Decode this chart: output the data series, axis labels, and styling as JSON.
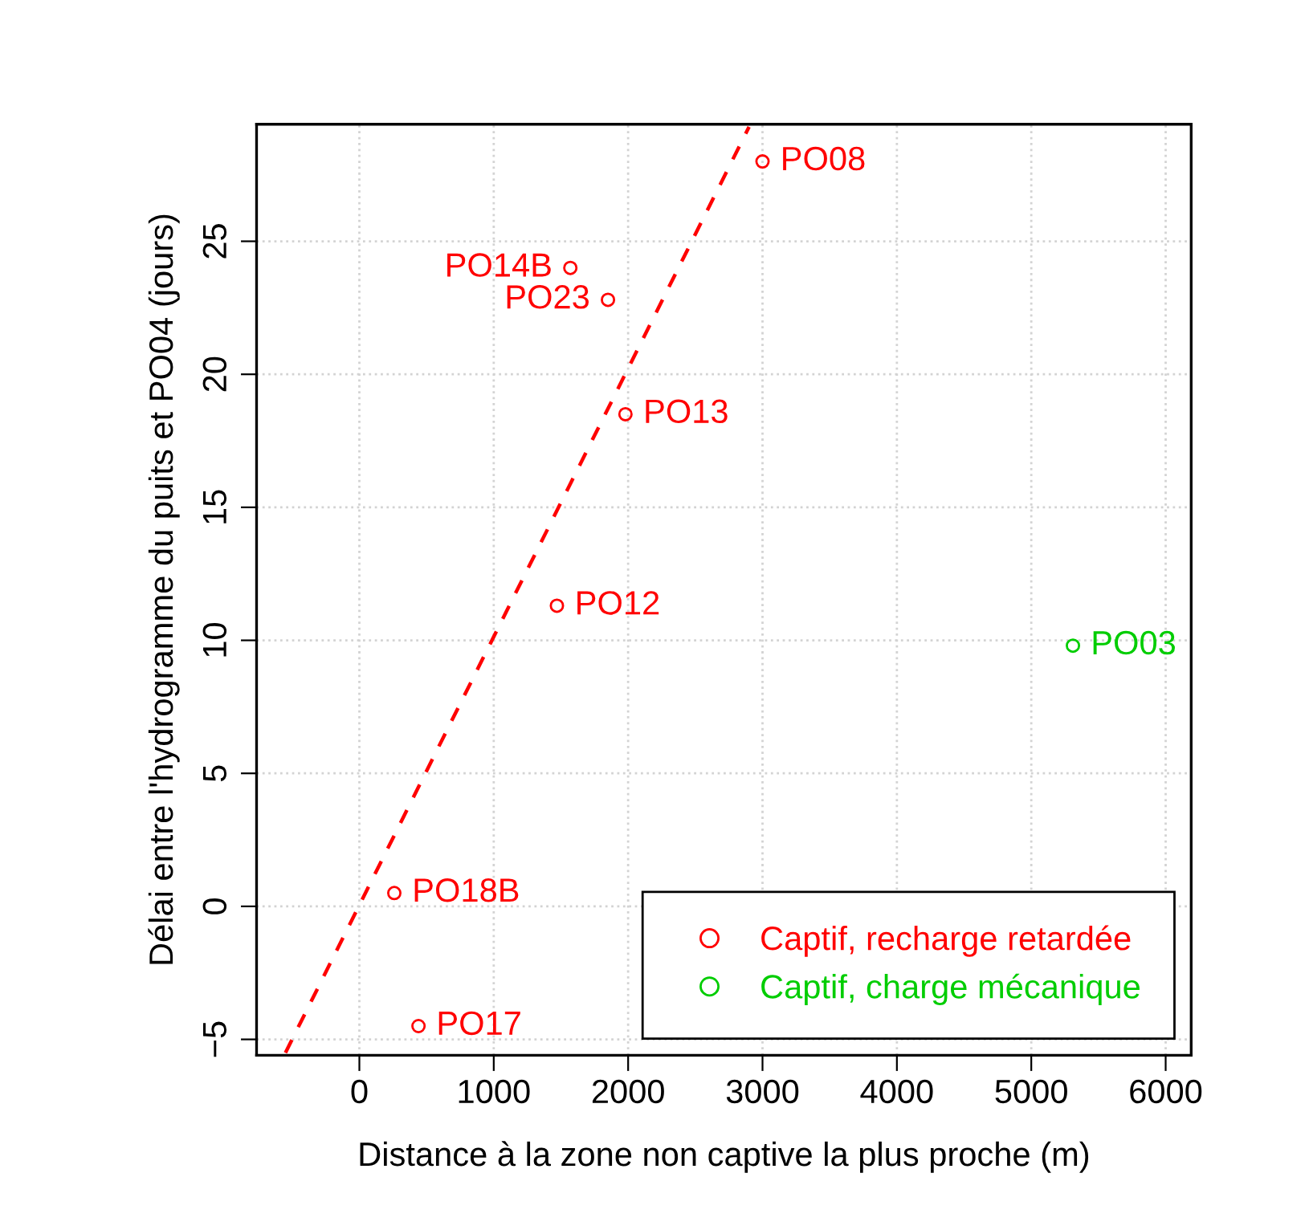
{
  "chart_data": {
    "type": "scatter",
    "xlabel": "Distance à la zone non captive la plus proche (m)",
    "ylabel": "Délai entre l'hydrogramme du puits et PO04 (jours)",
    "series": [
      {
        "name": "Captif, recharge retardée",
        "color": "#ff0000",
        "marker": "circle",
        "x": [
          3000,
          1570,
          1850,
          1980,
          1470,
          260,
          440
        ],
        "values": [
          28,
          24,
          22.8,
          18.5,
          11.3,
          0.5,
          -4.5
        ]
      },
      {
        "name": "Captif, charge mécanique",
        "color": "#00cd00",
        "marker": "circle",
        "x": [
          5310
        ],
        "values": [
          9.8
        ]
      },
      {
        "type": "line",
        "color": "#ff0000",
        "line_style": "dashed",
        "marker": "none",
        "x": [
          -550,
          2900
        ],
        "values": [
          -5.5,
          29.3
        ]
      }
    ],
    "annotations": [
      {
        "text": "PO08",
        "x": 3000,
        "y": 28
      },
      {
        "text": "PO14B",
        "x": 1570,
        "y": 24
      },
      {
        "text": "PO23",
        "x": 1850,
        "y": 22.8
      },
      {
        "text": "PO13",
        "x": 1980,
        "y": 18.5
      },
      {
        "text": "PO12",
        "x": 1470,
        "y": 11.3
      },
      {
        "text": "PO18B",
        "x": 260,
        "y": 0.5
      },
      {
        "text": "PO17",
        "x": 440,
        "y": -4.5
      },
      {
        "text": "PO03",
        "x": 5310,
        "y": 9.8
      }
    ],
    "xlim": [
      -765,
      6190
    ],
    "ylim": [
      -5.6,
      29.4
    ],
    "xticks": [
      0,
      1000,
      2000,
      3000,
      4000,
      5000,
      6000
    ],
    "yticks": [
      {
        "value": -5,
        "label": "−5"
      },
      0,
      5,
      10,
      15,
      20,
      25
    ],
    "grid": true,
    "legend": "bottom right"
  }
}
